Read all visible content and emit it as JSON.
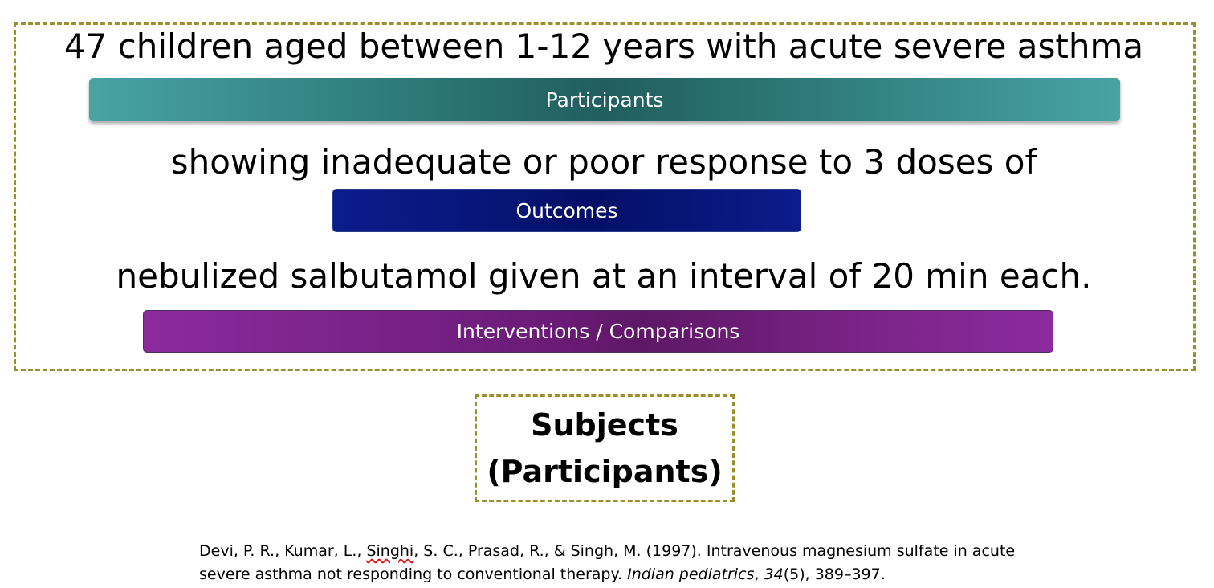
{
  "diagram": {
    "participants_text": "47 children aged between 1-12 years with acute severe asthma",
    "participants_label": "Participants",
    "outcomes_text": "showing inadequate or poor response to 3 doses of",
    "outcomes_label": "Outcomes",
    "interventions_text": "nebulized salbutamol given at an interval of 20 min each.",
    "interventions_label": "Interventions / Comparisons"
  },
  "subject_box": {
    "line1": "Subjects",
    "line2": "(Participants)"
  },
  "citation": {
    "part1": "Devi, P. R., Kumar, L., ",
    "squiggle_word": "Singhi",
    "part2": ", S. C., Prasad, R., & Singh, M. (1997). Intravenous magnesium sulfate in acute severe asthma not responding to conventional therapy. ",
    "journal": "Indian pediatrics",
    "sep1": ", ",
    "volume": "34",
    "issue_pages": "(5), 389–397."
  },
  "colors": {
    "frame_border": "#9a8f2c",
    "participants_bar": "#2e7a7a",
    "outcomes_bar": "#071577",
    "interventions_bar": "#6b1b77"
  }
}
